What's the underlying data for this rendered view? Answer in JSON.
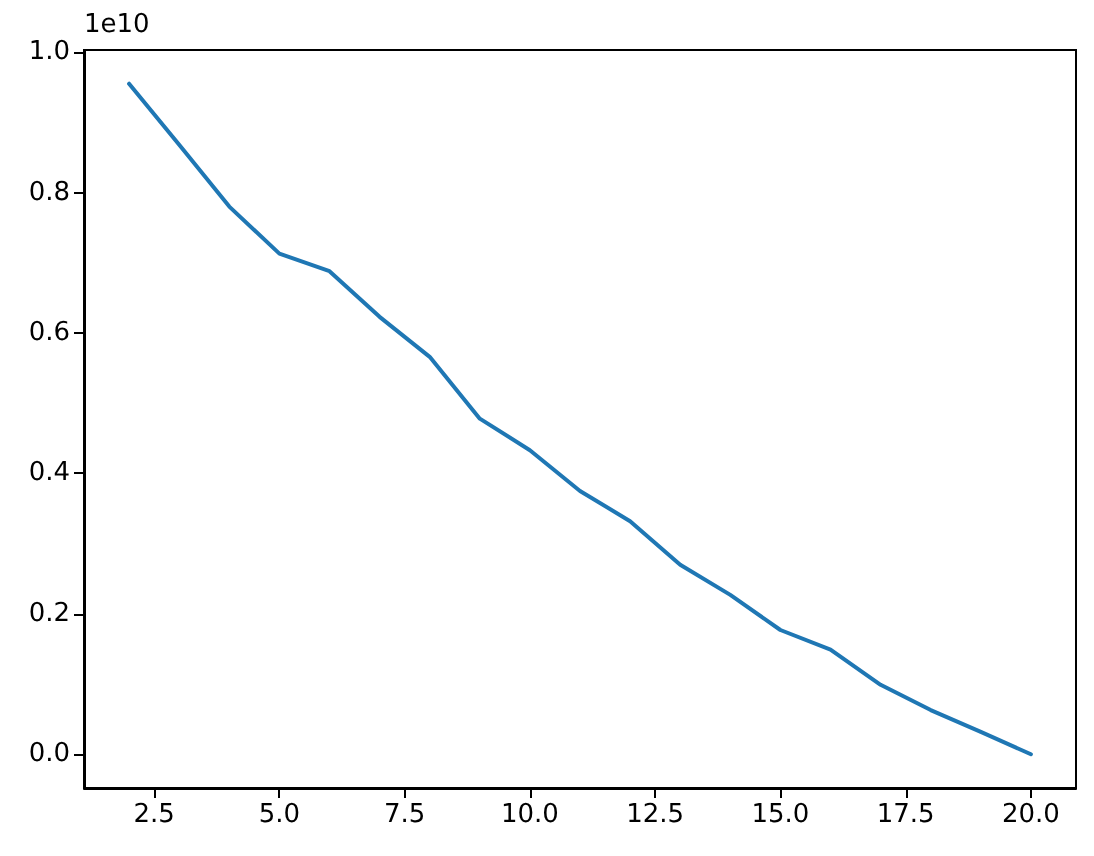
{
  "chart_data": {
    "type": "line",
    "x": [
      2,
      3,
      4,
      5,
      6,
      7,
      8,
      9,
      10,
      11,
      12,
      13,
      14,
      15,
      16,
      17,
      18,
      19,
      20
    ],
    "series": [
      {
        "color": "#1f77b4",
        "values": [
          0.955,
          0.868,
          0.78,
          0.713,
          0.688,
          0.623,
          0.566,
          0.478,
          0.433,
          0.375,
          0.332,
          0.27,
          0.227,
          0.177,
          0.149,
          0.099,
          0.063,
          0.032,
          0.0
        ]
      }
    ],
    "xlim": [
      1.1,
      20.9
    ],
    "ylim": [
      -0.048,
      1.003
    ],
    "xticks": [
      2.5,
      {
        "value": 5,
        "label": "5.0"
      },
      7.5,
      {
        "value": 10,
        "label": "10.0"
      },
      12.5,
      {
        "value": 15,
        "label": "15.0"
      },
      17.5,
      {
        "value": 20,
        "label": "20.0"
      }
    ],
    "yticks": [
      {
        "value": 0,
        "label": "0.0"
      },
      0.2,
      0.4,
      0.6,
      0.8,
      {
        "value": 1,
        "label": "1.0"
      }
    ],
    "annotations": [
      "1e10"
    ],
    "grid": false
  }
}
